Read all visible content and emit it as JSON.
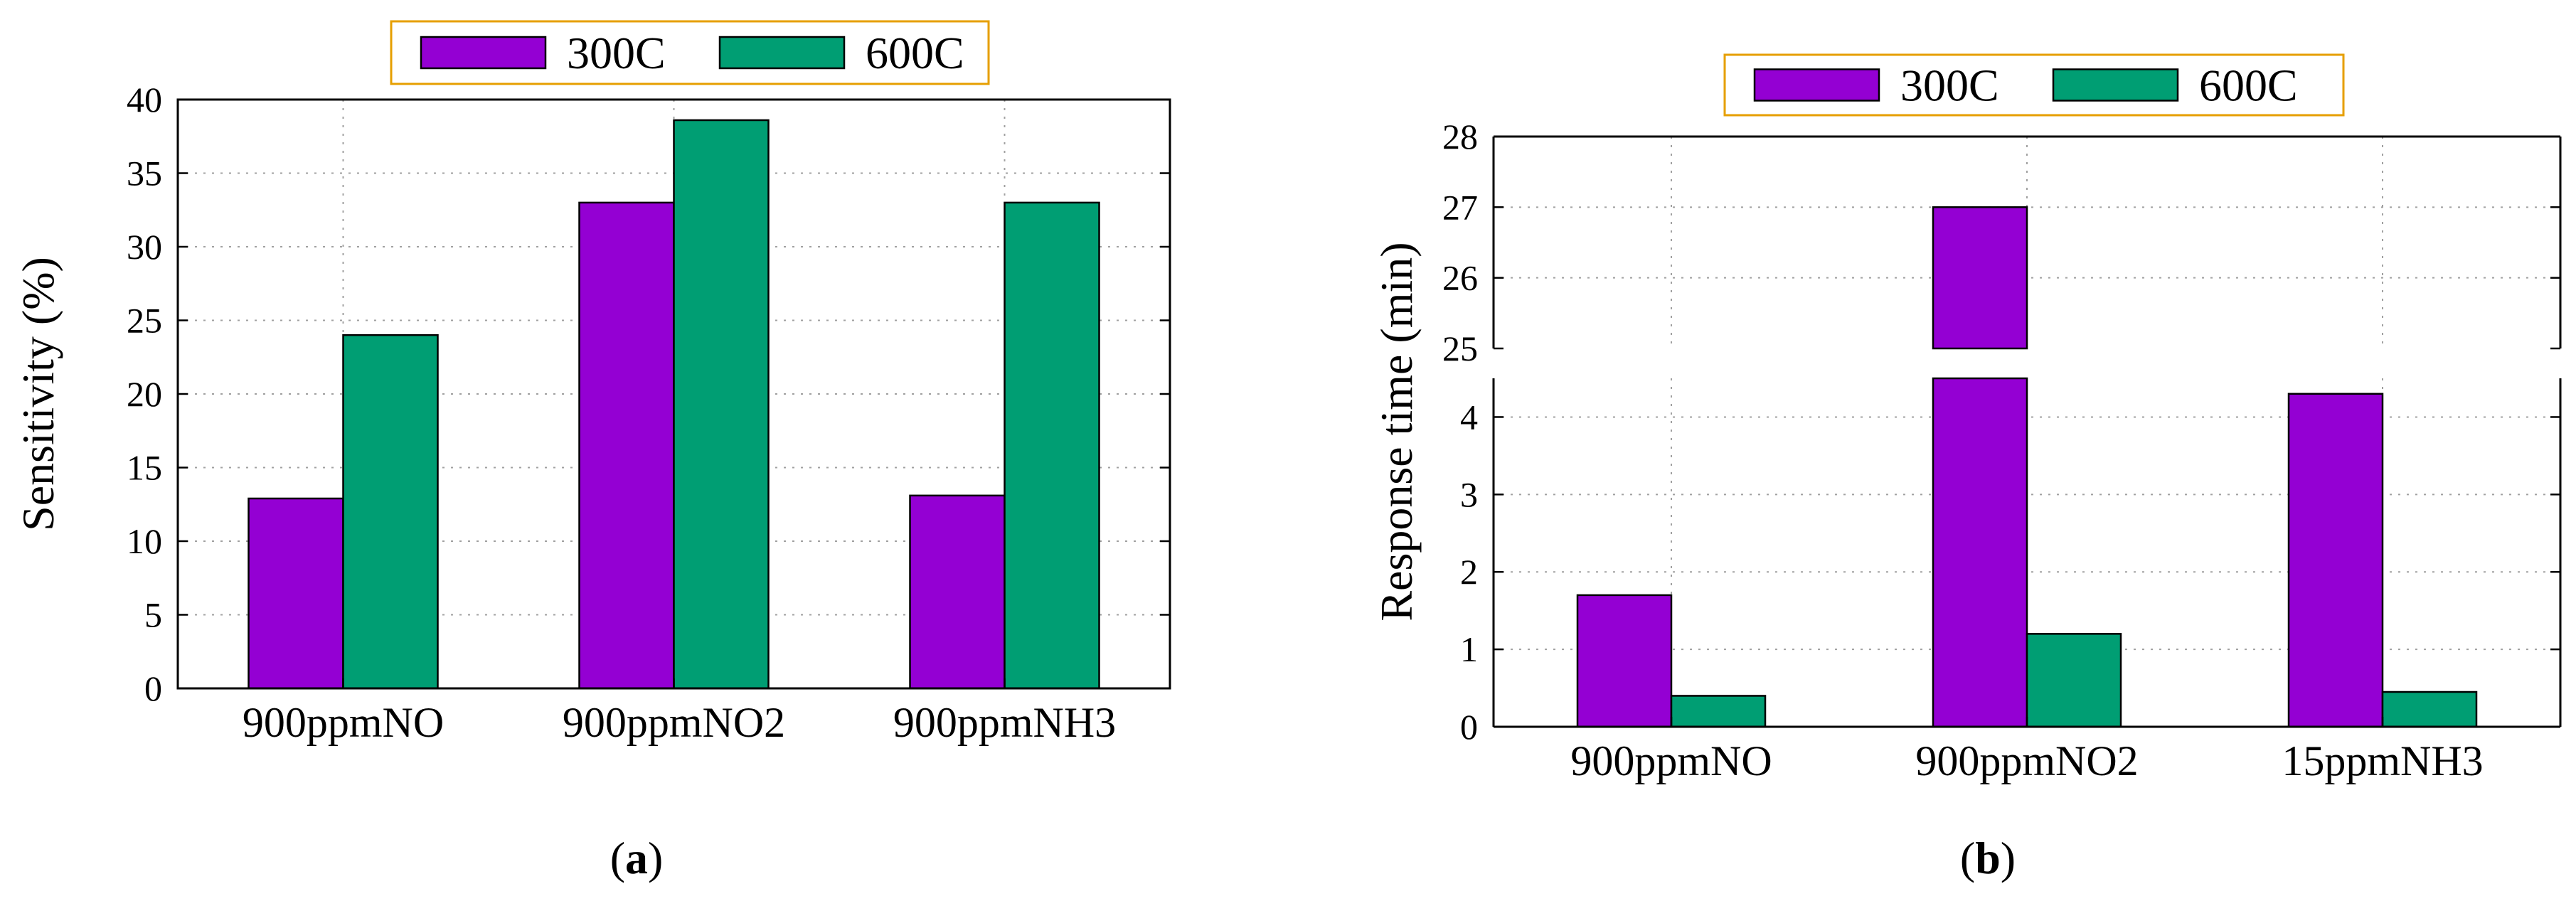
{
  "colors": {
    "series_300": "#9400d3",
    "series_600": "#009e73",
    "legend_border": "#e69f00",
    "grid": "#a0a0a0"
  },
  "chart_data": [
    {
      "type": "bar",
      "panel_label": "a",
      "xlabel": "",
      "ylabel": "Sensitivity (%)",
      "ylim": [
        0,
        40
      ],
      "yticks": [
        0,
        5,
        10,
        15,
        20,
        25,
        30,
        35,
        40
      ],
      "categories": [
        "900ppmNO",
        "900ppmNO2",
        "900ppmNH3"
      ],
      "series": [
        {
          "name": "300C",
          "values": [
            12.9,
            33.0,
            13.1
          ]
        },
        {
          "name": "600C",
          "values": [
            24.0,
            38.6,
            33.0
          ]
        }
      ],
      "legend_position": "top",
      "grid": true
    },
    {
      "type": "bar",
      "panel_label": "b",
      "xlabel": "",
      "ylabel": "Response time (min)",
      "broken_axis": true,
      "ylim_lower": [
        0,
        4.5
      ],
      "ylim_upper": [
        25,
        28
      ],
      "yticks_lower": [
        0,
        1,
        2,
        3,
        4
      ],
      "yticks_upper": [
        25,
        26,
        27,
        28
      ],
      "categories": [
        "900ppmNO",
        "900ppmNO2",
        "15ppmNH3"
      ],
      "series": [
        {
          "name": "300C",
          "values": [
            1.7,
            27.0,
            4.3
          ]
        },
        {
          "name": "600C",
          "values": [
            0.4,
            1.2,
            0.45
          ]
        }
      ],
      "legend_position": "top",
      "grid": true
    }
  ]
}
